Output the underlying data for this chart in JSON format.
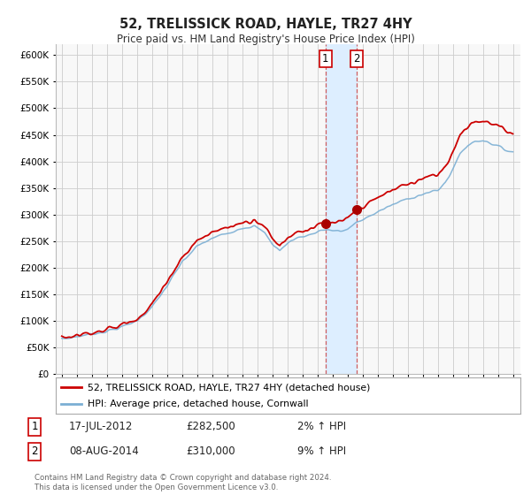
{
  "title": "52, TRELISSICK ROAD, HAYLE, TR27 4HY",
  "subtitle": "Price paid vs. HM Land Registry's House Price Index (HPI)",
  "legend_line1": "52, TRELISSICK ROAD, HAYLE, TR27 4HY (detached house)",
  "legend_line2": "HPI: Average price, detached house, Cornwall",
  "transaction1": {
    "label": "1",
    "date": "17-JUL-2012",
    "price": "£282,500",
    "change": "2% ↑ HPI"
  },
  "transaction2": {
    "label": "2",
    "date": "08-AUG-2014",
    "price": "£310,000",
    "change": "9% ↑ HPI"
  },
  "footer": "Contains HM Land Registry data © Crown copyright and database right 2024.\nThis data is licensed under the Open Government Licence v3.0.",
  "hpi_color": "#7bafd4",
  "price_color": "#cc0000",
  "highlight_color": "#ddeeff",
  "marker_color": "#aa0000",
  "dashed_color": "#cc4444",
  "ylim": [
    0,
    620000
  ],
  "yticks": [
    0,
    50000,
    100000,
    150000,
    200000,
    250000,
    300000,
    350000,
    400000,
    450000,
    500000,
    550000,
    600000
  ],
  "background_color": "#ffffff",
  "plot_bg_color": "#f8f8f8",
  "grid_color": "#cccccc",
  "sale1_year": 2012.54,
  "sale2_year": 2014.6,
  "sale1_price": 282500,
  "sale2_price": 310000
}
